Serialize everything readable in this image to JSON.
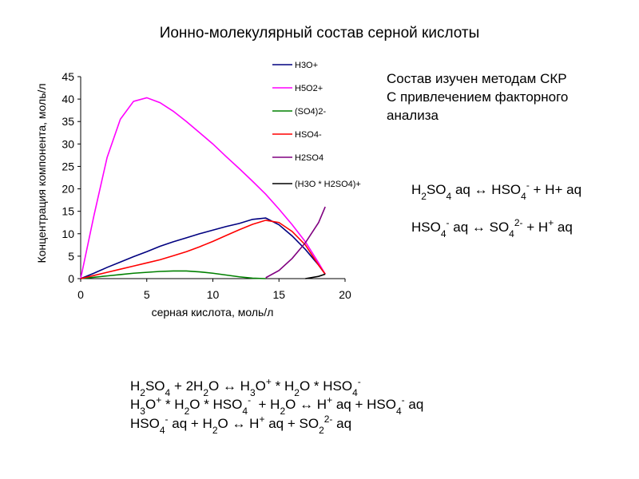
{
  "chart_data": {
    "type": "line",
    "title": "Ионно-молекулярный состав серной кислоты",
    "xlabel": "серная кислота, моль/л",
    "ylabel": "Концентрация компонента, моль/л",
    "x": [
      0,
      1,
      2,
      3,
      4,
      5,
      6,
      7,
      8,
      9,
      10,
      11,
      12,
      13,
      14,
      15,
      16,
      17,
      18,
      18.5
    ],
    "series": [
      {
        "name": "H3O+",
        "color": "#000080",
        "values": [
          0,
          1.2,
          2.5,
          3.7,
          4.9,
          6.0,
          7.2,
          8.2,
          9.1,
          10,
          10.8,
          11.6,
          12.3,
          13.2,
          13.5,
          12,
          9.5,
          6.5,
          3,
          1
        ]
      },
      {
        "name": "H5O2+",
        "color": "#ff00ff",
        "values": [
          0,
          14,
          27,
          35.5,
          39.5,
          40.3,
          39.2,
          37.3,
          35,
          32.5,
          30,
          27.2,
          24.5,
          21.7,
          18.8,
          15.5,
          12,
          8.2,
          3.5,
          1
        ]
      },
      {
        "name": "(SO4)2-",
        "color": "#008000",
        "values": [
          0,
          0.3,
          0.6,
          0.9,
          1.2,
          1.4,
          1.6,
          1.7,
          1.7,
          1.5,
          1.2,
          0.8,
          0.4,
          0.1,
          0,
          null,
          null,
          null,
          null,
          null
        ]
      },
      {
        "name": "HSO4-",
        "color": "#ff0000",
        "values": [
          0,
          0.7,
          1.4,
          2.1,
          2.8,
          3.5,
          4.2,
          5.1,
          6.0,
          7.1,
          8.3,
          9.6,
          10.9,
          12.1,
          13,
          12.5,
          10.5,
          7.5,
          3,
          1
        ]
      },
      {
        "name": "H2SO4",
        "color": "#800080",
        "values": [
          null,
          null,
          null,
          null,
          null,
          null,
          null,
          null,
          null,
          null,
          null,
          null,
          null,
          null,
          0.2,
          1.8,
          4.5,
          8,
          12.5,
          16
        ]
      },
      {
        "name": "(H3O * H2SO4)+",
        "color": "#000000",
        "values": [
          null,
          null,
          null,
          null,
          null,
          null,
          null,
          null,
          null,
          null,
          null,
          null,
          null,
          null,
          null,
          null,
          null,
          0,
          0.5,
          1
        ]
      }
    ],
    "xlim": [
      0,
      20
    ],
    "xticks": [
      0,
      5,
      10,
      15,
      20
    ],
    "ylim": [
      0,
      45
    ],
    "yticks": [
      0,
      5,
      10,
      15,
      20,
      25,
      30,
      35,
      40,
      45
    ],
    "grid": false,
    "legend": "right"
  },
  "note": [
    "Состав изучен методам СКР",
    "С привлечением факторного",
    "анализа"
  ],
  "equations": [
    [
      "H",
      {
        "sub": "2"
      },
      "SO",
      {
        "sub": "4"
      },
      " aq ↔ HSO",
      {
        "sub": "4"
      },
      {
        "sup": "-"
      },
      " + H+ aq"
    ],
    [
      "HSO",
      {
        "sub": "4"
      },
      {
        "sup": "-"
      },
      " aq ↔ SO",
      {
        "sub": "4"
      },
      {
        "sup": "2-"
      },
      " + H",
      {
        "sup": "+"
      },
      " aq"
    ],
    [
      "H",
      {
        "sub": "2"
      },
      "SO",
      {
        "sub": "4"
      },
      " + 2H",
      {
        "sub": "2"
      },
      "O ↔ H",
      {
        "sub": "3"
      },
      "O",
      {
        "sup": "+"
      },
      " * H",
      {
        "sub": "2"
      },
      "O * HSO",
      {
        "sub": "4"
      },
      {
        "sup": "-"
      }
    ],
    [
      "H",
      {
        "sub": "3"
      },
      "O",
      {
        "sup": "+"
      },
      " * H",
      {
        "sub": "2"
      },
      "O * HSO",
      {
        "sub": "4"
      },
      {
        "sup": "-"
      },
      "  + H",
      {
        "sub": "2"
      },
      "O ↔ H",
      {
        "sup": "+"
      },
      " aq + HSO",
      {
        "sub": "4"
      },
      {
        "sup": "-"
      },
      " aq"
    ],
    [
      "HSO",
      {
        "sub": "4"
      },
      {
        "sup": "-"
      },
      " aq + H",
      {
        "sub": "2"
      },
      "O ↔ H",
      {
        "sup": "+"
      },
      " aq + SO",
      {
        "sub": "2"
      },
      {
        "sup": "2-"
      },
      " aq"
    ]
  ]
}
